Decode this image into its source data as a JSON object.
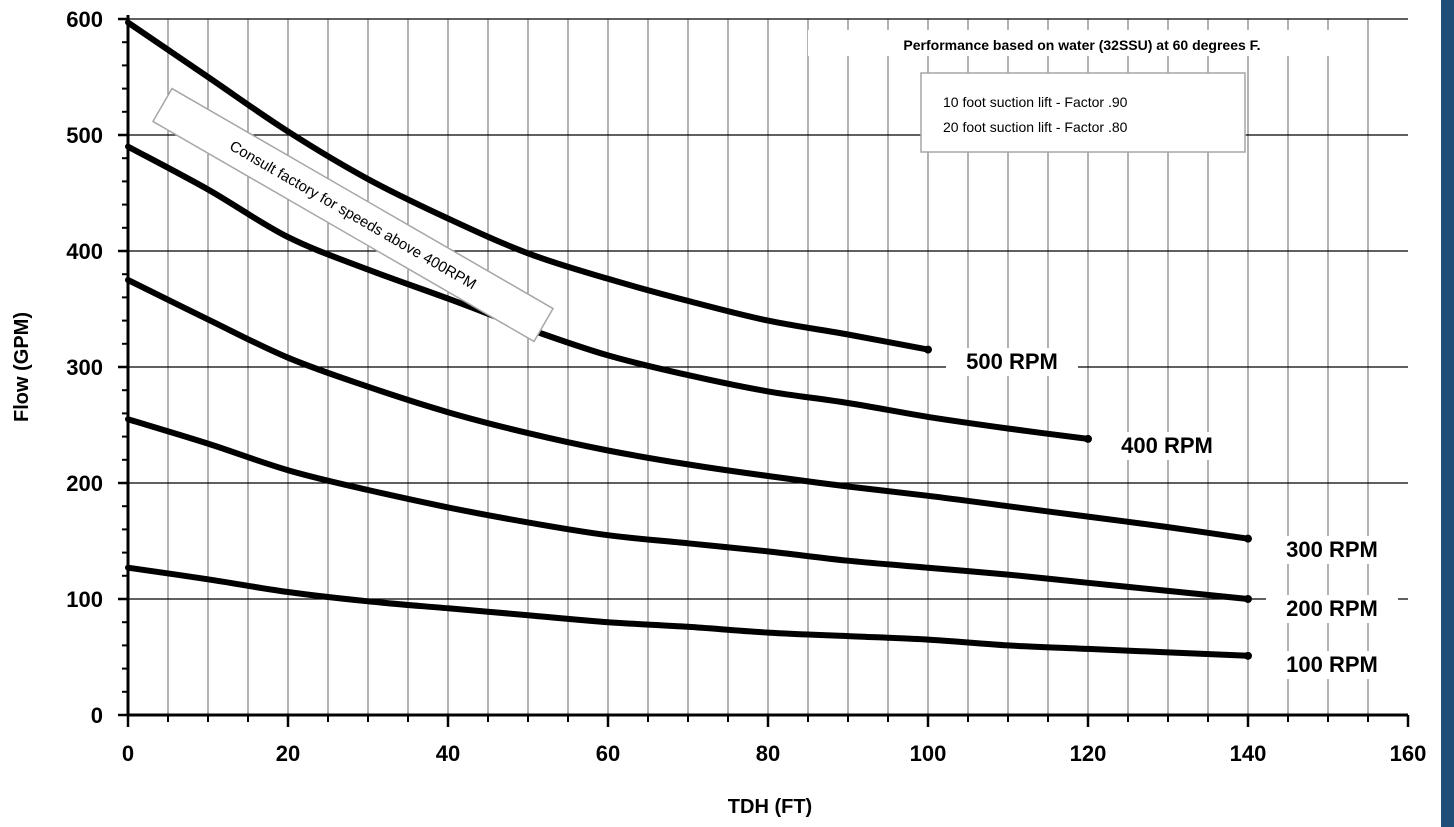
{
  "colors": {
    "side_bar": "#1f4e79",
    "grid": "#000000",
    "curve": "#000000",
    "box_border": "#a6a6a6"
  },
  "chart_data": {
    "type": "line",
    "xlabel": "TDH (FT)",
    "ylabel": "Flow (GPM)",
    "xlim": [
      0,
      160
    ],
    "ylim": [
      0,
      600
    ],
    "x_ticks": [
      "0",
      "20",
      "40",
      "60",
      "80",
      "100",
      "120",
      "140",
      "160"
    ],
    "y_ticks": [
      "0",
      "100",
      "200",
      "300",
      "400",
      "500",
      "600"
    ],
    "grid": true,
    "series": [
      {
        "name": "100 RPM",
        "x": [
          0,
          10,
          20,
          30,
          40,
          50,
          60,
          70,
          80,
          90,
          100,
          110,
          120,
          130,
          140
        ],
        "y": [
          127,
          117,
          106,
          98,
          92,
          86,
          80,
          76,
          71,
          68,
          65,
          60,
          57,
          54,
          51
        ]
      },
      {
        "name": "200 RPM",
        "x": [
          0,
          10,
          20,
          30,
          40,
          50,
          60,
          70,
          80,
          90,
          100,
          110,
          120,
          130,
          140
        ],
        "y": [
          255,
          234,
          211,
          194,
          179,
          166,
          155,
          148,
          141,
          133,
          127,
          121,
          114,
          107,
          100
        ]
      },
      {
        "name": "300 RPM",
        "x": [
          0,
          10,
          20,
          30,
          40,
          50,
          60,
          70,
          80,
          90,
          100,
          110,
          120,
          130,
          140
        ],
        "y": [
          375,
          341,
          308,
          283,
          261,
          243,
          228,
          216,
          206,
          197,
          189,
          180,
          171,
          162,
          152
        ]
      },
      {
        "name": "400 RPM",
        "x": [
          0,
          10,
          20,
          30,
          40,
          50,
          60,
          70,
          80,
          90,
          100,
          110,
          120
        ],
        "y": [
          490,
          453,
          412,
          384,
          359,
          333,
          310,
          293,
          279,
          269,
          257,
          247,
          238
        ]
      },
      {
        "name": "500 RPM",
        "x": [
          0,
          10,
          20,
          30,
          40,
          50,
          60,
          70,
          80,
          90,
          100
        ],
        "y": [
          597,
          550,
          503,
          462,
          428,
          398,
          376,
          357,
          340,
          328,
          315
        ]
      }
    ],
    "annotations": {
      "performance_note": "Performance based on water (32SSU) at 60 degrees F.",
      "suction_lines": [
        "10 foot suction lift - Factor .90",
        "20 foot suction lift - Factor .80"
      ],
      "consult_note": "Consult factory for speeds above 400RPM"
    }
  }
}
